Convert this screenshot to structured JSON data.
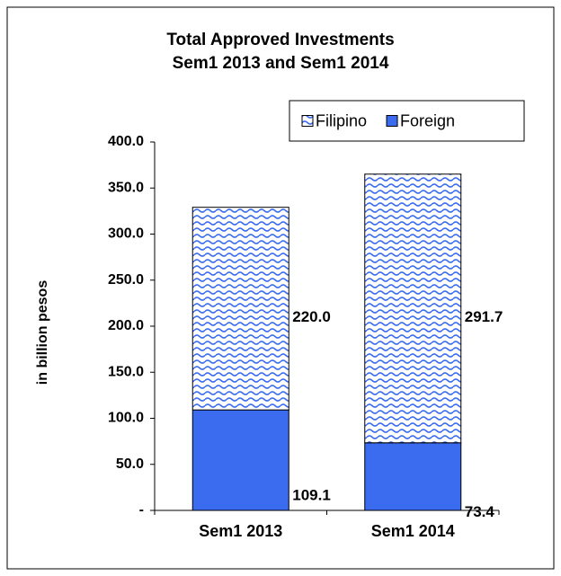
{
  "chart_data": {
    "type": "stacked-bar",
    "title": "Total Approved Investments",
    "subtitle": "Sem1 2013 and Sem1 2014",
    "ylabel": "in billion pesos",
    "categories": [
      "Sem1 2013",
      "Sem1 2014"
    ],
    "series": [
      {
        "name": "Foreign",
        "color": "#3b6cf0",
        "values": [
          109.1,
          73.4
        ],
        "value_labels": [
          "109.1",
          "73.4"
        ]
      },
      {
        "name": "Filipino",
        "color": "#3b6cf0",
        "pattern": "wave",
        "values": [
          220.0,
          291.7
        ],
        "value_labels": [
          "220.0",
          "291.7"
        ]
      }
    ],
    "legend_order": [
      "Filipino",
      "Foreign"
    ],
    "legend": "top-right",
    "ylim": [
      0,
      400
    ],
    "yticks": [
      {
        "value": 0,
        "label": "-"
      },
      {
        "value": 50,
        "label": "50.0"
      },
      {
        "value": 100,
        "label": "100.0"
      },
      {
        "value": 150,
        "label": "150.0"
      },
      {
        "value": 200,
        "label": "200.0"
      },
      {
        "value": 250,
        "label": "250.0"
      },
      {
        "value": 300,
        "label": "300.0"
      },
      {
        "value": 350,
        "label": "350.0"
      },
      {
        "value": 400,
        "label": "400.0"
      }
    ],
    "grid": false
  }
}
